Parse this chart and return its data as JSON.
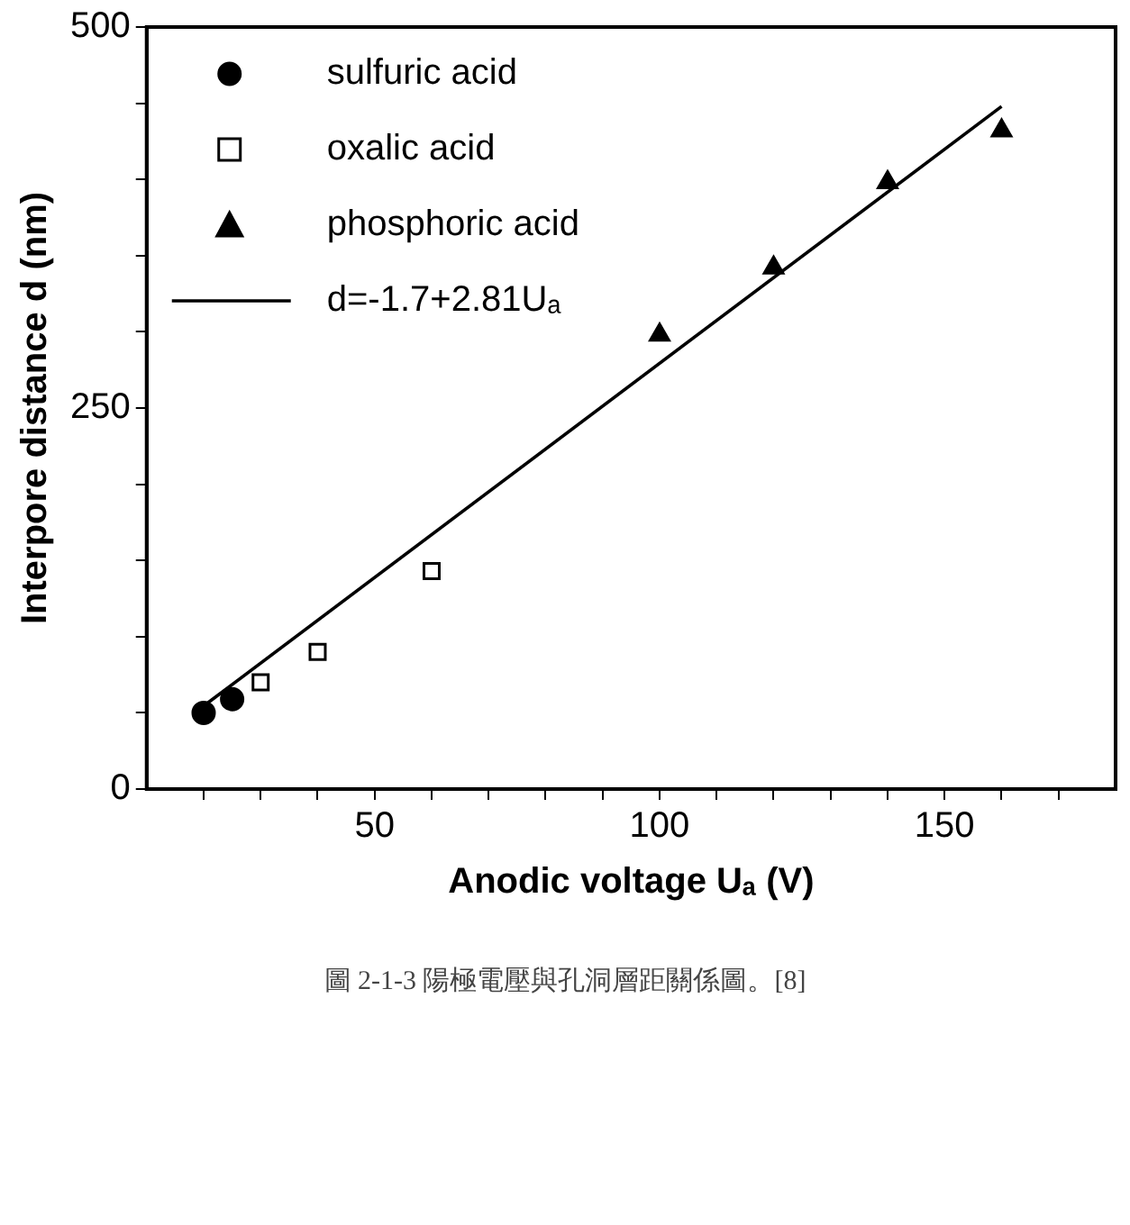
{
  "chart_data": {
    "type": "scatter",
    "xlabel": "Anodic voltage Uₐ (V)",
    "ylabel": "Interpore distance d (nm)",
    "xlim": [
      10,
      180
    ],
    "xticks": [
      {
        "value": 20,
        "label": null
      },
      {
        "value": 30,
        "label": null
      },
      {
        "value": 40,
        "label": null
      },
      50,
      {
        "value": 60,
        "label": null
      },
      {
        "value": 70,
        "label": null
      },
      {
        "value": 80,
        "label": null
      },
      {
        "value": 90,
        "label": null
      },
      100,
      {
        "value": 110,
        "label": null
      },
      {
        "value": 120,
        "label": null
      },
      {
        "value": 130,
        "label": null
      },
      {
        "value": 140,
        "label": null
      },
      150,
      {
        "value": 160,
        "label": null
      },
      {
        "value": 170,
        "label": null
      }
    ],
    "ylim": [
      0,
      500
    ],
    "yticks": [
      0,
      {
        "value": 50,
        "label": null
      },
      {
        "value": 100,
        "label": null
      },
      {
        "value": 150,
        "label": null
      },
      {
        "value": 200,
        "label": null
      },
      250,
      {
        "value": 300,
        "label": null
      },
      {
        "value": 350,
        "label": null
      },
      {
        "value": 400,
        "label": null
      },
      {
        "value": 450,
        "label": null
      },
      500
    ],
    "grid": false,
    "legend": "top left",
    "series": [
      {
        "name": "sulfuric acid",
        "color": "#000000",
        "marker": "circle",
        "x": [
          20,
          25
        ],
        "values": [
          50,
          59
        ]
      },
      {
        "name": "oxalic acid",
        "color": "#000000",
        "marker": "square",
        "x": [
          30,
          40,
          60
        ],
        "values": [
          70,
          90,
          143
        ]
      },
      {
        "name": "phosphoric acid",
        "color": "#000000",
        "marker": "triangle",
        "x": [
          100,
          120,
          140,
          160
        ],
        "values": [
          298,
          342,
          398,
          432
        ]
      },
      {
        "name": "d=-1.7+2.81Uₐ",
        "type": "line",
        "color": "#000000",
        "marker": "none",
        "line_style": "solid",
        "x": [
          20,
          160
        ],
        "values": [
          54.5,
          447.9
        ]
      }
    ],
    "annotations": [
      "圖 2-1-3 陽極電壓與孔洞層距關係圖。[8]"
    ]
  }
}
